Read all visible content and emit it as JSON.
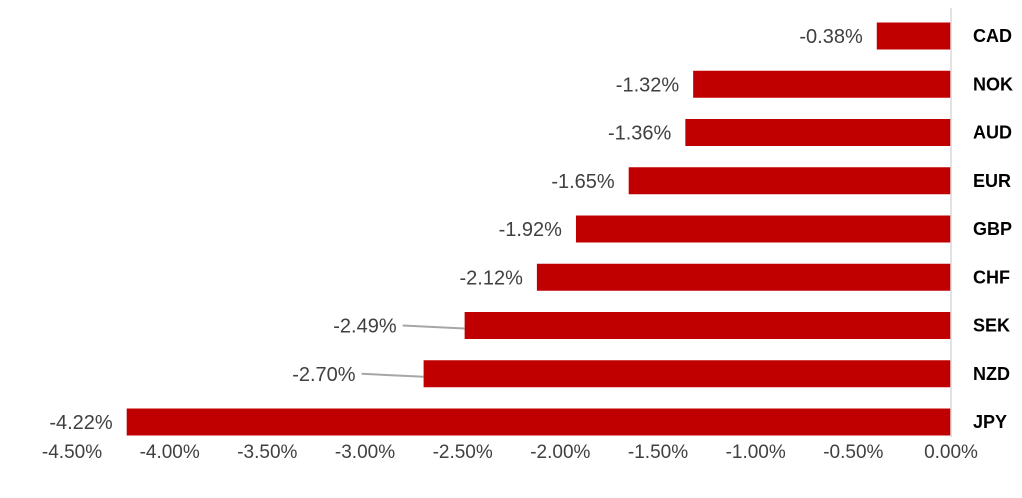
{
  "chart_data": {
    "type": "bar",
    "orientation": "horizontal",
    "categories": [
      "CAD",
      "NOK",
      "AUD",
      "EUR",
      "GBP",
      "CHF",
      "SEK",
      "NZD",
      "JPY"
    ],
    "values": [
      -0.38,
      -1.32,
      -1.36,
      -1.65,
      -1.92,
      -2.12,
      -2.49,
      -2.7,
      -4.22
    ],
    "value_labels": [
      "-0.38%",
      "-1.32%",
      "-1.36%",
      "-1.65%",
      "-1.92%",
      "-2.12%",
      "-2.49%",
      "-2.70%",
      "-4.22%"
    ],
    "xlim": [
      -4.5,
      0
    ],
    "x_ticks": [
      -4.5,
      -4.0,
      -3.5,
      -3.0,
      -2.5,
      -2.0,
      -1.5,
      -1.0,
      -0.5,
      0.0
    ],
    "x_tick_labels": [
      "-4.50%",
      "-4.00%",
      "-3.50%",
      "-3.00%",
      "-2.50%",
      "-2.00%",
      "-1.50%",
      "-1.00%",
      "-0.50%",
      "0.00%"
    ],
    "title": "",
    "xlabel": "",
    "ylabel": "",
    "grid": false,
    "legend": "none",
    "colors": {
      "bar": "#C00000",
      "axis": "#D9D9D9",
      "leader": "#A6A6A6"
    }
  }
}
